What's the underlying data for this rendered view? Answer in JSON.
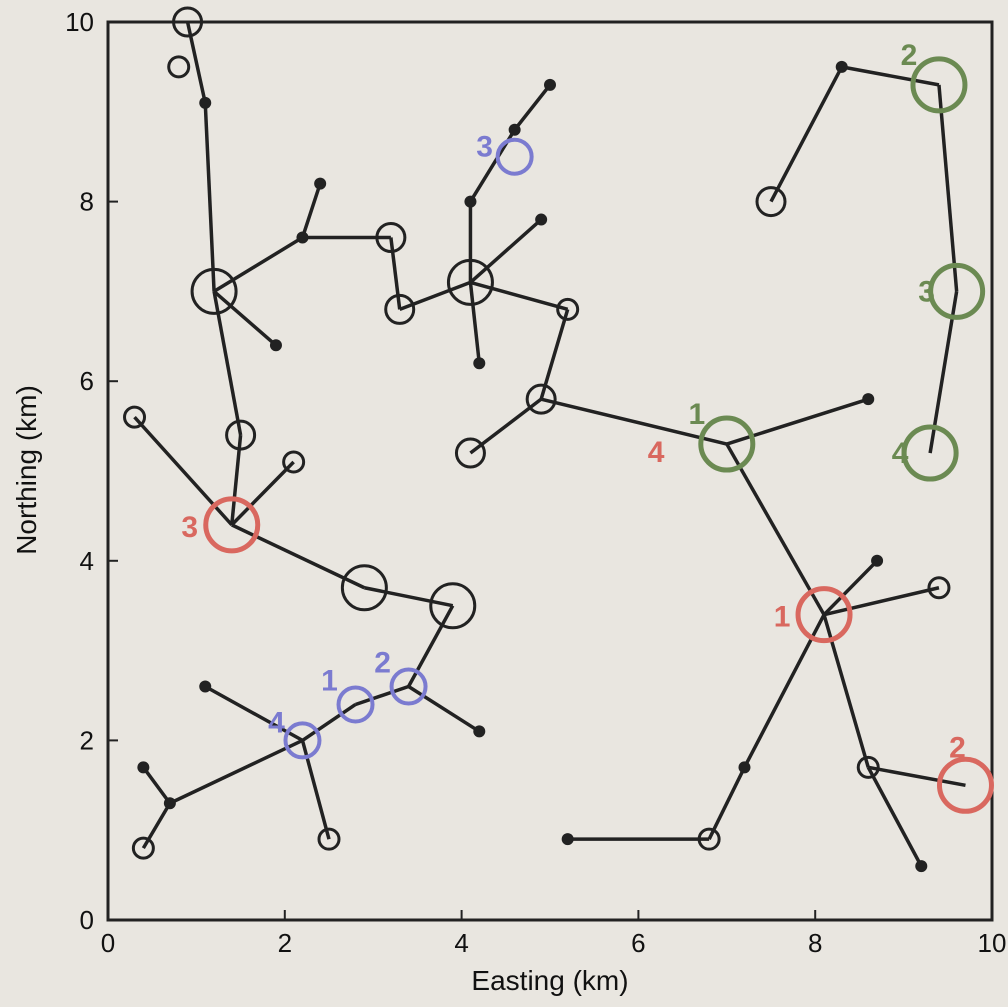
{
  "chart_data": {
    "type": "scatter",
    "title": "",
    "xlabel": "Easting (km)",
    "ylabel": "Northing (km)",
    "xlim": [
      0,
      10
    ],
    "ylim": [
      0,
      10
    ],
    "xticks": [
      "0",
      "2",
      "4",
      "6",
      "8",
      "10"
    ],
    "yticks": [
      "0",
      "2",
      "4",
      "6",
      "8",
      "10"
    ],
    "grid": false,
    "colors": {
      "line": "#222222",
      "red": "#d9685f",
      "blue": "#7b7bd0",
      "green": "#6b8a52"
    },
    "nodes": [
      {
        "id": "a1",
        "x": 0.9,
        "y": 10.0,
        "kind": "open",
        "size": "small"
      },
      {
        "id": "a2",
        "x": 0.8,
        "y": 9.5,
        "kind": "open",
        "size": "tiny"
      },
      {
        "id": "a3",
        "x": 1.1,
        "y": 9.1,
        "kind": "dot"
      },
      {
        "id": "b1",
        "x": 1.2,
        "y": 7.0,
        "kind": "open",
        "size": "medium"
      },
      {
        "id": "b2",
        "x": 2.2,
        "y": 7.6,
        "kind": "dot"
      },
      {
        "id": "b3",
        "x": 2.4,
        "y": 8.2,
        "kind": "dot"
      },
      {
        "id": "b4",
        "x": 3.2,
        "y": 7.6,
        "kind": "open",
        "size": "small"
      },
      {
        "id": "b5",
        "x": 3.3,
        "y": 6.8,
        "kind": "open",
        "size": "small"
      },
      {
        "id": "b6",
        "x": 1.9,
        "y": 6.4,
        "kind": "dot"
      },
      {
        "id": "c1",
        "x": 4.1,
        "y": 7.1,
        "kind": "open",
        "size": "medium"
      },
      {
        "id": "c2",
        "x": 4.1,
        "y": 8.0,
        "kind": "dot"
      },
      {
        "id": "c3",
        "x": 4.6,
        "y": 8.8,
        "kind": "dot"
      },
      {
        "id": "c4",
        "x": 5.0,
        "y": 9.3,
        "kind": "dot"
      },
      {
        "id": "c5",
        "x": 4.9,
        "y": 7.8,
        "kind": "dot"
      },
      {
        "id": "c6",
        "x": 5.2,
        "y": 6.8,
        "kind": "open",
        "size": "tiny"
      },
      {
        "id": "c7",
        "x": 4.2,
        "y": 6.2,
        "kind": "dot"
      },
      {
        "id": "d1",
        "x": 1.5,
        "y": 5.4,
        "kind": "open",
        "size": "small"
      },
      {
        "id": "d2",
        "x": 2.1,
        "y": 5.1,
        "kind": "open",
        "size": "tiny"
      },
      {
        "id": "d3",
        "x": 0.3,
        "y": 5.6,
        "kind": "open",
        "size": "tiny"
      },
      {
        "id": "d4",
        "x": 2.9,
        "y": 3.7,
        "kind": "open",
        "size": "medium"
      },
      {
        "id": "d5",
        "x": 3.9,
        "y": 3.5,
        "kind": "open",
        "size": "medium"
      },
      {
        "id": "d6",
        "x": 4.2,
        "y": 2.1,
        "kind": "dot"
      },
      {
        "id": "e1",
        "x": 4.1,
        "y": 5.2,
        "kind": "open",
        "size": "small"
      },
      {
        "id": "e2",
        "x": 4.9,
        "y": 5.8,
        "kind": "open",
        "size": "small"
      },
      {
        "id": "e3",
        "x": 7.0,
        "y": 5.3,
        "kind": "open",
        "size": "none"
      },
      {
        "id": "e4",
        "x": 8.6,
        "y": 5.8,
        "kind": "dot"
      },
      {
        "id": "f1",
        "x": 8.1,
        "y": 3.4,
        "kind": "open",
        "size": "none"
      },
      {
        "id": "f2",
        "x": 8.7,
        "y": 4.0,
        "kind": "dot"
      },
      {
        "id": "f3",
        "x": 9.4,
        "y": 3.7,
        "kind": "open",
        "size": "tiny"
      },
      {
        "id": "f4",
        "x": 7.2,
        "y": 1.7,
        "kind": "dot"
      },
      {
        "id": "f5",
        "x": 6.8,
        "y": 0.9,
        "kind": "open",
        "size": "tiny"
      },
      {
        "id": "f6",
        "x": 5.2,
        "y": 0.9,
        "kind": "dot"
      },
      {
        "id": "f7",
        "x": 8.6,
        "y": 1.7,
        "kind": "open",
        "size": "tiny"
      },
      {
        "id": "f8",
        "x": 9.2,
        "y": 0.6,
        "kind": "dot"
      },
      {
        "id": "f9",
        "x": 9.7,
        "y": 1.5,
        "kind": "open",
        "size": "none"
      },
      {
        "id": "g1",
        "x": 7.5,
        "y": 8.0,
        "kind": "open",
        "size": "small"
      },
      {
        "id": "g2",
        "x": 8.3,
        "y": 9.5,
        "kind": "dot"
      },
      {
        "id": "g3",
        "x": 9.4,
        "y": 9.3,
        "kind": "open",
        "size": "none"
      },
      {
        "id": "g4",
        "x": 9.6,
        "y": 7.0,
        "kind": "open",
        "size": "none"
      },
      {
        "id": "g5",
        "x": 9.3,
        "y": 5.2,
        "kind": "open",
        "size": "none"
      },
      {
        "id": "h1",
        "x": 2.2,
        "y": 2.0,
        "kind": "open",
        "size": "none"
      },
      {
        "id": "h2",
        "x": 2.8,
        "y": 2.4,
        "kind": "open",
        "size": "none"
      },
      {
        "id": "h3",
        "x": 3.4,
        "y": 2.6,
        "kind": "open",
        "size": "none"
      },
      {
        "id": "h4",
        "x": 4.6,
        "y": 8.5,
        "kind": "open",
        "size": "none"
      },
      {
        "id": "h5",
        "x": 1.1,
        "y": 2.6,
        "kind": "dot"
      },
      {
        "id": "h6",
        "x": 0.4,
        "y": 1.7,
        "kind": "dot"
      },
      {
        "id": "h7",
        "x": 0.7,
        "y": 1.3,
        "kind": "dot"
      },
      {
        "id": "h8",
        "x": 0.4,
        "y": 0.8,
        "kind": "open",
        "size": "tiny"
      },
      {
        "id": "h9",
        "x": 2.5,
        "y": 0.9,
        "kind": "open",
        "size": "tiny"
      },
      {
        "id": "i1",
        "x": 1.4,
        "y": 4.4,
        "kind": "open",
        "size": "none"
      }
    ],
    "edges": [
      [
        "a1",
        "a3"
      ],
      [
        "a3",
        "b1"
      ],
      [
        "b1",
        "b2"
      ],
      [
        "b2",
        "b3"
      ],
      [
        "b2",
        "b4"
      ],
      [
        "b4",
        "b5"
      ],
      [
        "b5",
        "c1"
      ],
      [
        "c1",
        "c2"
      ],
      [
        "c2",
        "c3"
      ],
      [
        "c3",
        "c4"
      ],
      [
        "c1",
        "c5"
      ],
      [
        "c1",
        "c6"
      ],
      [
        "c1",
        "c7"
      ],
      [
        "b1",
        "b6"
      ],
      [
        "b1",
        "d1"
      ],
      [
        "d1",
        "i1"
      ],
      [
        "i1",
        "d3"
      ],
      [
        "i1",
        "d2"
      ],
      [
        "i1",
        "d4"
      ],
      [
        "d4",
        "d5"
      ],
      [
        "d5",
        "h3"
      ],
      [
        "h3",
        "d6"
      ],
      [
        "h3",
        "h2"
      ],
      [
        "h2",
        "h1"
      ],
      [
        "h1",
        "h5"
      ],
      [
        "h1",
        "h7"
      ],
      [
        "h7",
        "h6"
      ],
      [
        "h7",
        "h8"
      ],
      [
        "h1",
        "h9"
      ],
      [
        "e1",
        "e2"
      ],
      [
        "e2",
        "c6"
      ],
      [
        "e2",
        "e3"
      ],
      [
        "e3",
        "e4"
      ],
      [
        "e3",
        "f1"
      ],
      [
        "f1",
        "f2"
      ],
      [
        "f1",
        "f3"
      ],
      [
        "f1",
        "f4"
      ],
      [
        "f4",
        "f5"
      ],
      [
        "f5",
        "f6"
      ],
      [
        "f1",
        "f7"
      ],
      [
        "f7",
        "f9"
      ],
      [
        "f7",
        "f8"
      ],
      [
        "g1",
        "g2"
      ],
      [
        "g2",
        "g3"
      ],
      [
        "g3",
        "g4"
      ],
      [
        "g4",
        "g5"
      ]
    ],
    "highlight_circles": [
      {
        "x": 1.4,
        "y": 4.4,
        "color": "red",
        "label": "3"
      },
      {
        "x": 8.1,
        "y": 3.4,
        "color": "red",
        "label": "1"
      },
      {
        "x": 9.7,
        "y": 1.5,
        "color": "red",
        "label": "2"
      },
      {
        "x": 7.0,
        "y": 5.3,
        "color": "green",
        "label": "1"
      },
      {
        "x": 9.4,
        "y": 9.3,
        "color": "green",
        "label": "2"
      },
      {
        "x": 9.6,
        "y": 7.0,
        "color": "green",
        "label": "3"
      },
      {
        "x": 9.3,
        "y": 5.2,
        "color": "green",
        "label": "4"
      },
      {
        "x": 2.2,
        "y": 2.0,
        "color": "blue",
        "label": "4"
      },
      {
        "x": 2.8,
        "y": 2.4,
        "color": "blue",
        "label": "1"
      },
      {
        "x": 3.4,
        "y": 2.6,
        "color": "blue",
        "label": "2"
      },
      {
        "x": 4.6,
        "y": 8.5,
        "color": "blue",
        "label": "3"
      }
    ],
    "extra_labels": [
      {
        "text": "4",
        "color": "red",
        "x": 6.2,
        "y": 5.1
      }
    ]
  }
}
